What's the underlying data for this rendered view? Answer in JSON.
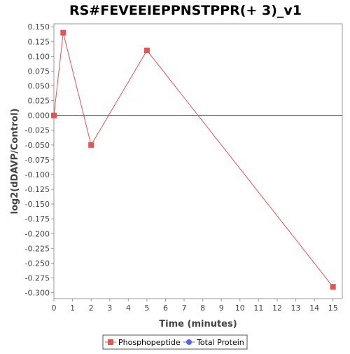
{
  "chart_data": {
    "type": "line",
    "title": "RS#FEVEEIEPPNSTPPR(+ 3)_v1",
    "xlabel": "Time (minutes)",
    "ylabel": "log2(dDAVP/Control)",
    "xlim": [
      0,
      15.5
    ],
    "ylim": [
      -0.31,
      0.155
    ],
    "xticks": [
      0,
      1,
      2,
      3,
      4,
      5,
      6,
      7,
      8,
      9,
      10,
      11,
      12,
      13,
      14,
      15
    ],
    "yticks": [
      0.15,
      0.125,
      0.1,
      0.075,
      0.05,
      0.025,
      0.0,
      -0.025,
      -0.05,
      -0.075,
      -0.1,
      -0.125,
      -0.15,
      -0.175,
      -0.2,
      -0.225,
      -0.25,
      -0.275,
      -0.3
    ],
    "ytick_labels": [
      "0.150",
      "0.125",
      "0.100",
      "0.075",
      "0.050",
      "0.025",
      "0.000",
      "-0.025",
      "-0.050",
      "-0.075",
      "-0.100",
      "-0.125",
      "-0.150",
      "-0.175",
      "-0.200",
      "-0.225",
      "-0.250",
      "-0.275",
      "-0.300"
    ],
    "zero_line": true,
    "grid": false,
    "legend_position": "bottom",
    "series": [
      {
        "name": "Phosphopeptide",
        "color": "#e05555",
        "marker": "square",
        "x": [
          0,
          0.5,
          2,
          5,
          15
        ],
        "y": [
          0.0,
          0.14,
          -0.05,
          0.11,
          -0.29
        ]
      },
      {
        "name": "Total Protein",
        "color": "#5566ee",
        "marker": "circle",
        "x": [],
        "y": []
      }
    ]
  }
}
